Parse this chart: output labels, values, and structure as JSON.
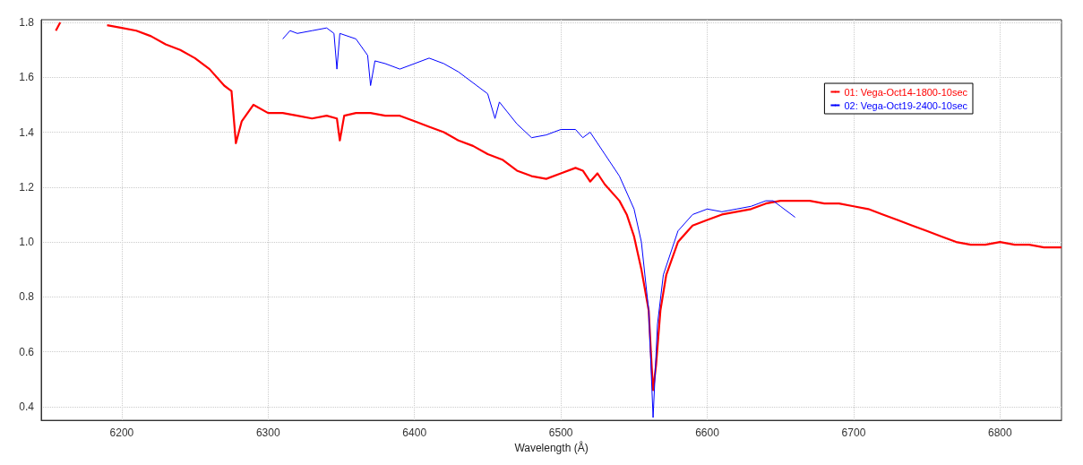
{
  "chart_data": {
    "type": "line",
    "xlabel": "Wavelength (Å)",
    "xlim": [
      6145,
      6842
    ],
    "xticks": [
      6200,
      6300,
      6400,
      6500,
      6600,
      6700,
      6800
    ],
    "ylim": [
      0.35,
      1.81
    ],
    "yticks": [
      0.4,
      0.6,
      0.8,
      {
        "value": 1,
        "label": "1.0"
      },
      1.2,
      1.4,
      1.6,
      1.8
    ],
    "grid": true,
    "legend": "top right",
    "marker": "none",
    "line_style": "solid",
    "series": [
      {
        "name": "01: Vega-Oct14-1800-10sec",
        "color": "#ff0000",
        "x": [
          6155,
          6158,
          6170,
          6190,
          6200,
          6210,
          6220,
          6230,
          6240,
          6250,
          6260,
          6270,
          6275,
          6278,
          6282,
          6290,
          6300,
          6310,
          6320,
          6330,
          6340,
          6347,
          6349,
          6352,
          6360,
          6370,
          6380,
          6390,
          6400,
          6410,
          6420,
          6430,
          6440,
          6450,
          6460,
          6470,
          6480,
          6490,
          6500,
          6510,
          6515,
          6520,
          6525,
          6530,
          6540,
          6545,
          6550,
          6555,
          6560,
          6562,
          6563,
          6565,
          6568,
          6572,
          6580,
          6590,
          6600,
          6610,
          6620,
          6630,
          6640,
          6650,
          6660,
          6670,
          6680,
          6690,
          6700,
          6710,
          6720,
          6730,
          6740,
          6750,
          6760,
          6770,
          6780,
          6790,
          6800,
          6810,
          6820,
          6830,
          6842
        ],
        "values": [
          1.77,
          1.8,
          null,
          1.79,
          1.78,
          1.77,
          1.75,
          1.72,
          1.7,
          1.67,
          1.63,
          1.57,
          1.55,
          1.36,
          1.44,
          1.5,
          1.47,
          1.47,
          1.46,
          1.45,
          1.46,
          1.45,
          1.37,
          1.46,
          1.47,
          1.47,
          1.46,
          1.46,
          1.44,
          1.42,
          1.4,
          1.37,
          1.35,
          1.32,
          1.3,
          1.26,
          1.24,
          1.23,
          1.25,
          1.27,
          1.26,
          1.22,
          1.25,
          1.21,
          1.15,
          1.1,
          1.02,
          0.9,
          0.75,
          0.55,
          0.46,
          0.55,
          0.75,
          0.88,
          1.0,
          1.06,
          1.08,
          1.1,
          1.11,
          1.12,
          1.14,
          1.15,
          1.15,
          1.15,
          1.14,
          1.14,
          1.13,
          1.12,
          1.1,
          1.08,
          1.06,
          1.04,
          1.02,
          1.0,
          0.99,
          0.99,
          1.0,
          0.99,
          0.99,
          0.98,
          0.98
        ]
      },
      {
        "name": "02: Vega-Oct19-2400-10sec",
        "color": "#0000ff",
        "x": [
          6310,
          6315,
          6320,
          6330,
          6340,
          6345,
          6347,
          6349,
          6360,
          6368,
          6370,
          6373,
          6380,
          6390,
          6400,
          6410,
          6420,
          6430,
          6440,
          6450,
          6455,
          6458,
          6470,
          6480,
          6490,
          6500,
          6510,
          6515,
          6520,
          6530,
          6540,
          6550,
          6555,
          6560,
          6563,
          6566,
          6570,
          6580,
          6590,
          6600,
          6610,
          6620,
          6630,
          6640,
          6645,
          6650,
          6660
        ],
        "values": [
          1.74,
          1.77,
          1.76,
          1.77,
          1.78,
          1.76,
          1.63,
          1.76,
          1.74,
          1.68,
          1.57,
          1.66,
          1.65,
          1.63,
          1.65,
          1.67,
          1.65,
          1.62,
          1.58,
          1.54,
          1.45,
          1.51,
          1.43,
          1.38,
          1.39,
          1.41,
          1.41,
          1.38,
          1.4,
          1.32,
          1.24,
          1.12,
          1.0,
          0.75,
          0.36,
          0.7,
          0.88,
          1.04,
          1.1,
          1.12,
          1.11,
          1.12,
          1.13,
          1.15,
          1.15,
          1.13,
          1.09
        ]
      }
    ]
  }
}
